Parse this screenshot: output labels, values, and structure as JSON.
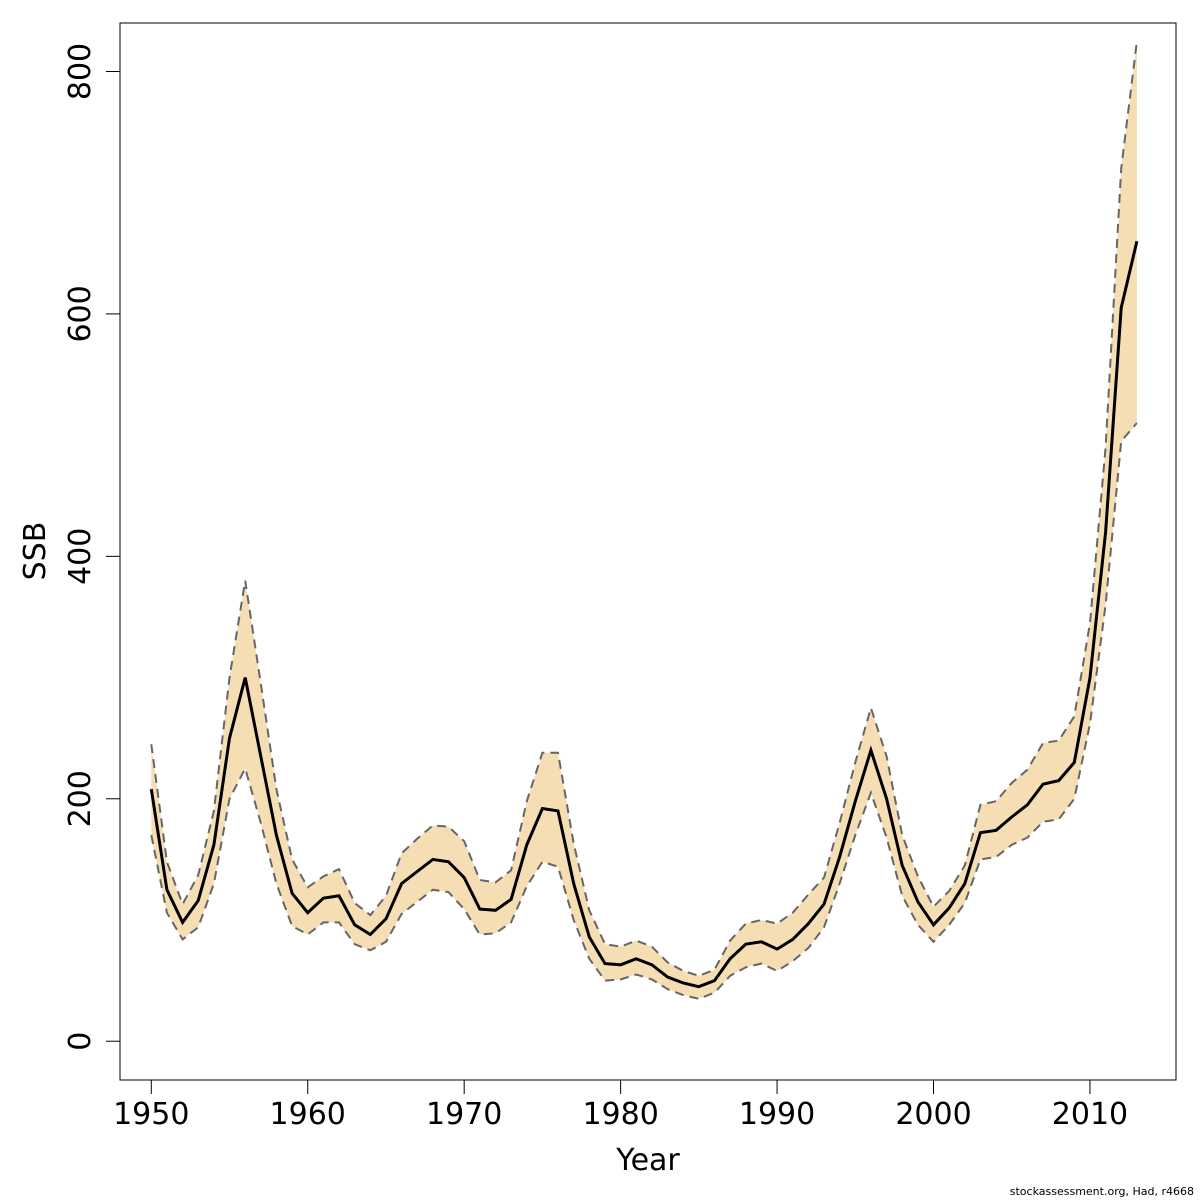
{
  "chart_data": {
    "type": "line",
    "xlabel": "Year",
    "ylabel": "SSB",
    "xlim": [
      1948,
      2015.5
    ],
    "ylim": [
      -32,
      840
    ],
    "x_ticks": [
      "1950",
      "1960",
      "1970",
      "1980",
      "1990",
      "2000",
      "2010"
    ],
    "y_ticks": [
      "0",
      "200",
      "400",
      "600",
      "800"
    ],
    "grid": false,
    "legend": "none",
    "colors": {
      "band": "#f5deb3",
      "line": "#000000",
      "dashed": "#666666"
    },
    "x": [
      1950,
      1951,
      1952,
      1953,
      1954,
      1955,
      1956,
      1957,
      1958,
      1959,
      1960,
      1961,
      1962,
      1963,
      1964,
      1965,
      1966,
      1967,
      1968,
      1969,
      1970,
      1971,
      1972,
      1973,
      1974,
      1975,
      1976,
      1977,
      1978,
      1979,
      1980,
      1981,
      1982,
      1983,
      1984,
      1985,
      1986,
      1987,
      1988,
      1989,
      1990,
      1991,
      1992,
      1993,
      1994,
      1995,
      1996,
      1997,
      1998,
      1999,
      2000,
      2001,
      2002,
      2003,
      2004,
      2005,
      2006,
      2007,
      2008,
      2009,
      2010,
      2011,
      2012,
      2013
    ],
    "series": [
      {
        "name": "SSB",
        "values": [
          208,
          125,
          98,
          116,
          162,
          250,
          300,
          235,
          170,
          122,
          106,
          118,
          120,
          96,
          88,
          101,
          130,
          140,
          150,
          148,
          135,
          109,
          108,
          117,
          162,
          192,
          190,
          130,
          86,
          64,
          63,
          68,
          63,
          53,
          48,
          45,
          50,
          68,
          80,
          82,
          76,
          84,
          97,
          113,
          152,
          198,
          240,
          200,
          145,
          115,
          96,
          110,
          130,
          172,
          174,
          185,
          195,
          212,
          215,
          230,
          300,
          420,
          605,
          660
        ]
      },
      {
        "name": "lower",
        "values": [
          170,
          106,
          84,
          94,
          130,
          200,
          225,
          180,
          130,
          95,
          88,
          98,
          98,
          80,
          75,
          82,
          105,
          115,
          125,
          123,
          109,
          88,
          89,
          98,
          128,
          148,
          144,
          100,
          68,
          50,
          51,
          55,
          51,
          43,
          38,
          35,
          40,
          54,
          61,
          64,
          58,
          66,
          77,
          94,
          130,
          170,
          205,
          168,
          120,
          96,
          82,
          96,
          114,
          150,
          152,
          162,
          168,
          181,
          183,
          200,
          262,
          360,
          495,
          510
        ]
      },
      {
        "name": "upper",
        "values": [
          245,
          148,
          113,
          137,
          190,
          300,
          380,
          295,
          208,
          150,
          127,
          136,
          142,
          114,
          104,
          120,
          155,
          167,
          178,
          177,
          165,
          133,
          131,
          141,
          198,
          238,
          238,
          163,
          108,
          80,
          78,
          83,
          78,
          65,
          58,
          54,
          59,
          83,
          97,
          100,
          97,
          106,
          121,
          135,
          180,
          230,
          275,
          235,
          170,
          136,
          111,
          124,
          145,
          195,
          198,
          213,
          224,
          246,
          248,
          268,
          345,
          490,
          720,
          825
        ]
      }
    ]
  },
  "footer": {
    "text": "stockassessment.org, Had, r4668"
  }
}
